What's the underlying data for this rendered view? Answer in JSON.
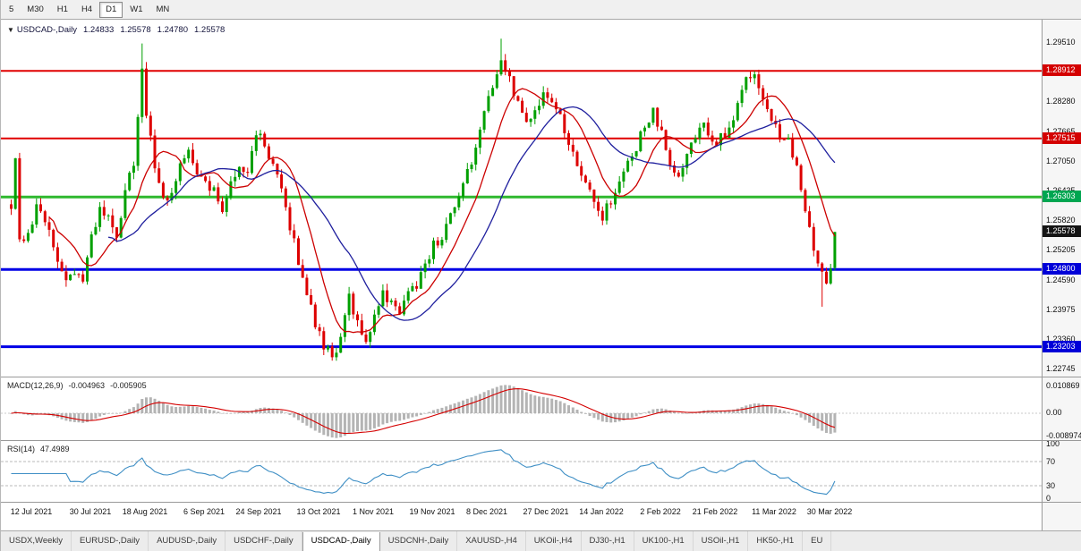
{
  "toolbar": {
    "active": "D1",
    "periods": [
      "5",
      "M30",
      "H1",
      "H4",
      "D1",
      "W1",
      "MN"
    ]
  },
  "chart": {
    "collapse_icon": "▼",
    "title_symbol": "USDCAD-,Daily"
  },
  "chart_data": {
    "type": "candlestick",
    "symbol": "USDCAD-",
    "timeframe": "Daily",
    "title_ohlc": {
      "open": "1.24833",
      "high": "1.25578",
      "low": "1.24780",
      "close": "1.25578"
    },
    "current_price": 1.25578,
    "price_axis": {
      "top_price": 1.2951,
      "step": 0.00615,
      "ticks": [
        1.2951,
        1.2828,
        1.27665,
        1.2705,
        1.26435,
        1.2582,
        1.25205,
        1.2459,
        1.23975,
        1.2336,
        1.22745
      ]
    },
    "time_axis_labels": [
      {
        "label": "12 Jul 2021",
        "i": 5
      },
      {
        "label": "30 Jul 2021",
        "i": 19
      },
      {
        "label": "18 Aug 2021",
        "i": 32
      },
      {
        "label": "6 Sep 2021",
        "i": 46
      },
      {
        "label": "24 Sep 2021",
        "i": 59
      },
      {
        "label": "13 Oct 2021",
        "i": 73
      },
      {
        "label": "1 Nov 2021",
        "i": 86
      },
      {
        "label": "19 Nov 2021",
        "i": 100
      },
      {
        "label": "8 Dec 2021",
        "i": 113
      },
      {
        "label": "27 Dec 2021",
        "i": 127
      },
      {
        "label": "14 Jan 2022",
        "i": 140
      },
      {
        "label": "2 Feb 2022",
        "i": 154
      },
      {
        "label": "21 Feb 2022",
        "i": 167
      },
      {
        "label": "11 Mar 2022",
        "i": 181
      },
      {
        "label": "30 Mar 2022",
        "i": 194
      }
    ],
    "horizontal_levels": [
      {
        "price": 1.28912,
        "color": "#e00000",
        "width": 2
      },
      {
        "price": 1.27515,
        "color": "#e00000",
        "width": 2
      },
      {
        "price": 1.26303,
        "color": "#2eb82e",
        "width": 3
      },
      {
        "price": 1.248,
        "color": "#0000e6",
        "width": 3
      },
      {
        "price": 1.23203,
        "color": "#0000e6",
        "width": 3
      }
    ],
    "price_badges": [
      {
        "label": "1.28912",
        "price": 1.28912,
        "color": "#d40000"
      },
      {
        "label": "1.27515",
        "price": 1.27515,
        "color": "#d40000"
      },
      {
        "label": "1.26303",
        "price": 1.26303,
        "color": "#00a651"
      },
      {
        "label": "1.25578",
        "price": 1.25578,
        "color": "#141414"
      },
      {
        "label": "1.24800",
        "price": 1.248,
        "color": "#0000d8"
      },
      {
        "label": "1.23203",
        "price": 1.23203,
        "color": "#0000d8"
      }
    ],
    "candles": {
      "count": 196,
      "up_color": "#00a000",
      "down_color": "#dd0000",
      "anchors": [
        [
          0,
          1.2615
        ],
        [
          1,
          1.27
        ],
        [
          2,
          1.255
        ],
        [
          4,
          1.2545
        ],
        [
          6,
          1.2605
        ],
        [
          9,
          1.256
        ],
        [
          11,
          1.25
        ],
        [
          13,
          1.2455
        ],
        [
          15,
          1.2475
        ],
        [
          17,
          1.2455
        ],
        [
          19,
          1.2545
        ],
        [
          21,
          1.26
        ],
        [
          23,
          1.2585
        ],
        [
          25,
          1.2545
        ],
        [
          27,
          1.264
        ],
        [
          29,
          1.27
        ],
        [
          31,
          1.289
        ],
        [
          32,
          1.28
        ],
        [
          34,
          1.27
        ],
        [
          36,
          1.262
        ],
        [
          38,
          1.2645
        ],
        [
          40,
          1.27
        ],
        [
          42,
          1.272
        ],
        [
          44,
          1.268
        ],
        [
          46,
          1.2655
        ],
        [
          48,
          1.264
        ],
        [
          50,
          1.261
        ],
        [
          52,
          1.266
        ],
        [
          54,
          1.27
        ],
        [
          56,
          1.268
        ],
        [
          58,
          1.2765
        ],
        [
          60,
          1.274
        ],
        [
          62,
          1.269
        ],
        [
          64,
          1.2645
        ],
        [
          66,
          1.257
        ],
        [
          68,
          1.25
        ],
        [
          70,
          1.243
        ],
        [
          72,
          1.237
        ],
        [
          74,
          1.232
        ],
        [
          76,
          1.23
        ],
        [
          78,
          1.233
        ],
        [
          80,
          1.242
        ],
        [
          82,
          1.237
        ],
        [
          84,
          1.233
        ],
        [
          86,
          1.239
        ],
        [
          88,
          1.243
        ],
        [
          90,
          1.241
        ],
        [
          92,
          1.239
        ],
        [
          94,
          1.243
        ],
        [
          96,
          1.245
        ],
        [
          98,
          1.249
        ],
        [
          100,
          1.253
        ],
        [
          102,
          1.255
        ],
        [
          104,
          1.259
        ],
        [
          106,
          1.263
        ],
        [
          108,
          1.268
        ],
        [
          110,
          1.273
        ],
        [
          112,
          1.28
        ],
        [
          114,
          1.286
        ],
        [
          116,
          1.292
        ],
        [
          117,
          1.29
        ],
        [
          118,
          1.287
        ],
        [
          120,
          1.282
        ],
        [
          122,
          1.279
        ],
        [
          124,
          1.28
        ],
        [
          126,
          1.285
        ],
        [
          128,
          1.283
        ],
        [
          130,
          1.28
        ],
        [
          132,
          1.274
        ],
        [
          134,
          1.269
        ],
        [
          136,
          1.266
        ],
        [
          138,
          1.261
        ],
        [
          140,
          1.259
        ],
        [
          142,
          1.2625
        ],
        [
          144,
          1.266
        ],
        [
          146,
          1.27
        ],
        [
          148,
          1.273
        ],
        [
          150,
          1.278
        ],
        [
          152,
          1.2805
        ],
        [
          154,
          1.276
        ],
        [
          156,
          1.269
        ],
        [
          158,
          1.2665
        ],
        [
          160,
          1.272
        ],
        [
          162,
          1.276
        ],
        [
          164,
          1.278
        ],
        [
          166,
          1.274
        ],
        [
          168,
          1.2755
        ],
        [
          170,
          1.277
        ],
        [
          172,
          1.282
        ],
        [
          174,
          1.287
        ],
        [
          176,
          1.288
        ],
        [
          178,
          1.284
        ],
        [
          180,
          1.279
        ],
        [
          182,
          1.276
        ],
        [
          184,
          1.2745
        ],
        [
          186,
          1.27
        ],
        [
          188,
          1.261
        ],
        [
          190,
          1.253
        ],
        [
          192,
          1.247
        ],
        [
          193,
          1.246
        ],
        [
          194,
          1.2485
        ],
        [
          195,
          1.25578
        ]
      ],
      "overrides": {
        "31": {
          "h": 1.2948
        },
        "116": {
          "h": 1.2958
        },
        "192": {
          "l": 1.2403
        },
        "195": {
          "o": 1.24833,
          "h": 1.25578,
          "l": 1.2478,
          "c": 1.25578
        }
      }
    },
    "moving_averages": [
      {
        "period": 10,
        "color": "#cc0000"
      },
      {
        "period": 24,
        "color": "#1f1f9e"
      }
    ],
    "indicators": {
      "macd": {
        "label": "MACD(12,26,9)",
        "fast": 12,
        "slow": 26,
        "signal": 9,
        "value_main": "-0.004963",
        "value_signal": "-0.005905",
        "axis_labels": [
          "0.010869",
          "0.00",
          "-0.008974"
        ],
        "histogram_color": "#b4b4b4",
        "signal_color": "#d40000"
      },
      "rsi": {
        "label": "RSI(14)",
        "period": 14,
        "value": "47.4989",
        "axis_labels": [
          "100",
          "70",
          "30",
          "0"
        ],
        "levels": [
          70,
          30
        ],
        "line_color": "#3f8fc5"
      }
    }
  },
  "tabs": {
    "active_index": 4,
    "items": [
      "USDX,Weekly",
      "EURUSD-,Daily",
      "AUDUSD-,Daily",
      "USDCHF-,Daily",
      "USDCAD-,Daily",
      "USDCNH-,Daily",
      "XAUUSD-,H4",
      "UKOil-,H4",
      "DJ30-,H1",
      "UK100-,H1",
      "USOil-,H1",
      "HK50-,H1",
      "EU"
    ]
  }
}
